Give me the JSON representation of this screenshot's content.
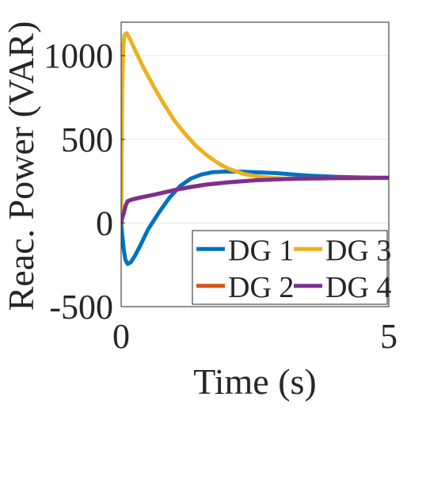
{
  "chart_data": {
    "type": "line",
    "title": "",
    "xlabel": "Time (s)",
    "ylabel": "Reac. Power (VAR)",
    "xlim": [
      0,
      5
    ],
    "ylim": [
      -500,
      1200
    ],
    "x_ticks": [
      0,
      5
    ],
    "x_tick_labels": [
      "0",
      "5"
    ],
    "y_ticks": [
      -500,
      0,
      500,
      1000
    ],
    "y_tick_labels": [
      "-500",
      "0",
      "500",
      "1000"
    ],
    "grid": true,
    "legend_location": "bottom-right",
    "legend_columns": 2,
    "series": [
      {
        "name": "DG 1",
        "color": "#0072BD",
        "points": [
          [
            0,
            0
          ],
          [
            0.02,
            -70
          ],
          [
            0.05,
            -160
          ],
          [
            0.08,
            -220
          ],
          [
            0.12,
            -245
          ],
          [
            0.18,
            -235
          ],
          [
            0.25,
            -200
          ],
          [
            0.35,
            -140
          ],
          [
            0.5,
            -40
          ],
          [
            0.7,
            60
          ],
          [
            0.9,
            150
          ],
          [
            1.1,
            220
          ],
          [
            1.3,
            265
          ],
          [
            1.5,
            290
          ],
          [
            1.7,
            303
          ],
          [
            2.0,
            308
          ],
          [
            2.3,
            306
          ],
          [
            2.6,
            302
          ],
          [
            2.9,
            298
          ],
          [
            3.2,
            290
          ],
          [
            3.5,
            283
          ],
          [
            4.0,
            276
          ],
          [
            4.5,
            272
          ],
          [
            5.0,
            270
          ]
        ]
      },
      {
        "name": "DG 2",
        "color": "#D95319",
        "points": [
          [
            0,
            0
          ],
          [
            0.02,
            30
          ],
          [
            0.05,
            60
          ],
          [
            0.08,
            100
          ],
          [
            0.12,
            130
          ],
          [
            0.2,
            140
          ],
          [
            0.4,
            155
          ],
          [
            0.6,
            168
          ],
          [
            0.8,
            182
          ],
          [
            1.0,
            197
          ],
          [
            1.3,
            215
          ],
          [
            1.6,
            230
          ],
          [
            2.0,
            243
          ],
          [
            2.5,
            255
          ],
          [
            3.0,
            262
          ],
          [
            3.5,
            266
          ],
          [
            4.0,
            268
          ],
          [
            5.0,
            270
          ]
        ]
      },
      {
        "name": "DG 3",
        "color": "#EDB120",
        "points": [
          [
            0,
            0
          ],
          [
            0.01,
            400
          ],
          [
            0.02,
            800
          ],
          [
            0.04,
            1050
          ],
          [
            0.06,
            1120
          ],
          [
            0.1,
            1135
          ],
          [
            0.15,
            1110
          ],
          [
            0.25,
            1040
          ],
          [
            0.4,
            940
          ],
          [
            0.6,
            820
          ],
          [
            0.8,
            710
          ],
          [
            1.0,
            610
          ],
          [
            1.2,
            530
          ],
          [
            1.4,
            460
          ],
          [
            1.6,
            405
          ],
          [
            1.8,
            360
          ],
          [
            2.0,
            325
          ],
          [
            2.3,
            292
          ],
          [
            2.6,
            275
          ],
          [
            3.0,
            266
          ],
          [
            3.5,
            265
          ],
          [
            4.0,
            267
          ],
          [
            5.0,
            270
          ]
        ]
      },
      {
        "name": "DG 4",
        "color": "#7E2F8E",
        "points": [
          [
            0,
            0
          ],
          [
            0.02,
            30
          ],
          [
            0.05,
            60
          ],
          [
            0.08,
            100
          ],
          [
            0.12,
            130
          ],
          [
            0.2,
            140
          ],
          [
            0.4,
            155
          ],
          [
            0.6,
            168
          ],
          [
            0.8,
            182
          ],
          [
            1.0,
            197
          ],
          [
            1.3,
            215
          ],
          [
            1.6,
            230
          ],
          [
            2.0,
            243
          ],
          [
            2.5,
            255
          ],
          [
            3.0,
            262
          ],
          [
            3.5,
            266
          ],
          [
            4.0,
            268
          ],
          [
            5.0,
            270
          ]
        ]
      }
    ]
  }
}
